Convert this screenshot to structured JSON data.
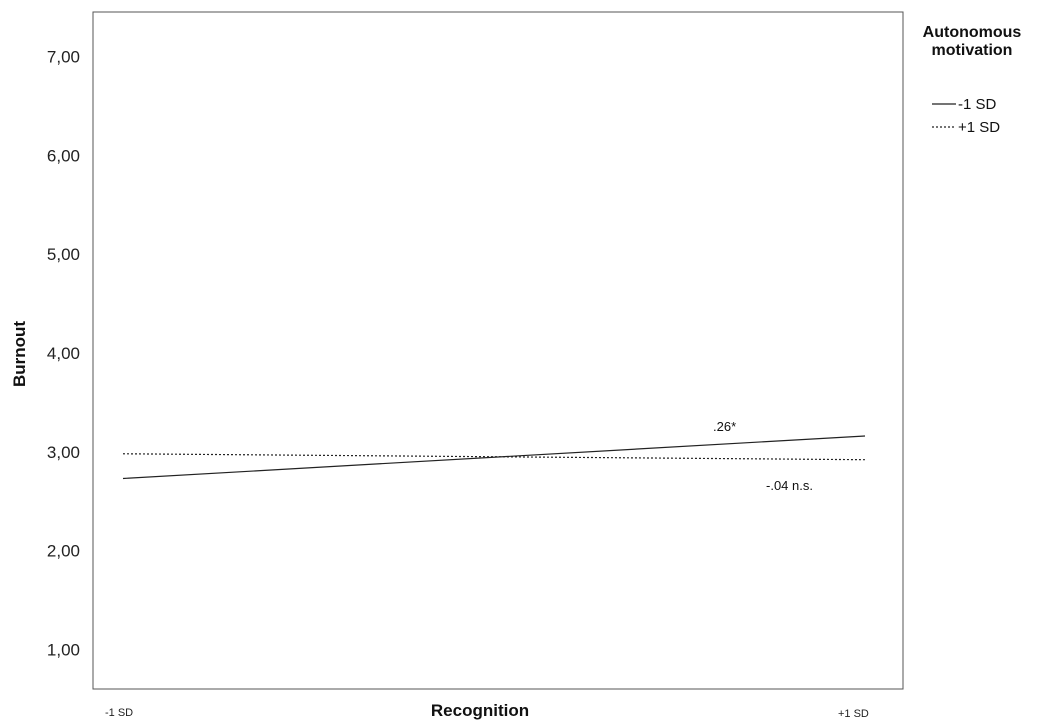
{
  "chart_data": {
    "type": "line",
    "title": "",
    "xlabel": "Recognition",
    "ylabel": "Burnout",
    "categories": [
      "-1 SD",
      "+1 SD"
    ],
    "ylim": [
      0.6,
      7.45
    ],
    "yticks": [
      "1,00",
      "2,00",
      "3,00",
      "4,00",
      "5,00",
      "6,00",
      "7,00"
    ],
    "ytick_values": [
      1,
      2,
      3,
      4,
      5,
      6,
      7
    ],
    "grid": false,
    "legend": {
      "title_line1": "Autonomous",
      "title_line2": "motivation",
      "placement": "top-right outside"
    },
    "series": [
      {
        "name": "-1 SD",
        "values": [
          2.73,
          3.16
        ],
        "style": "solid",
        "color": "#222222"
      },
      {
        "name": "+1 SD",
        "values": [
          2.98,
          2.92
        ],
        "style": "dotted",
        "color": "#222222"
      }
    ],
    "annotations": [
      {
        "text": ".26*",
        "series": 0
      },
      {
        "text": "-.04 n.s.",
        "series": 1
      }
    ]
  }
}
